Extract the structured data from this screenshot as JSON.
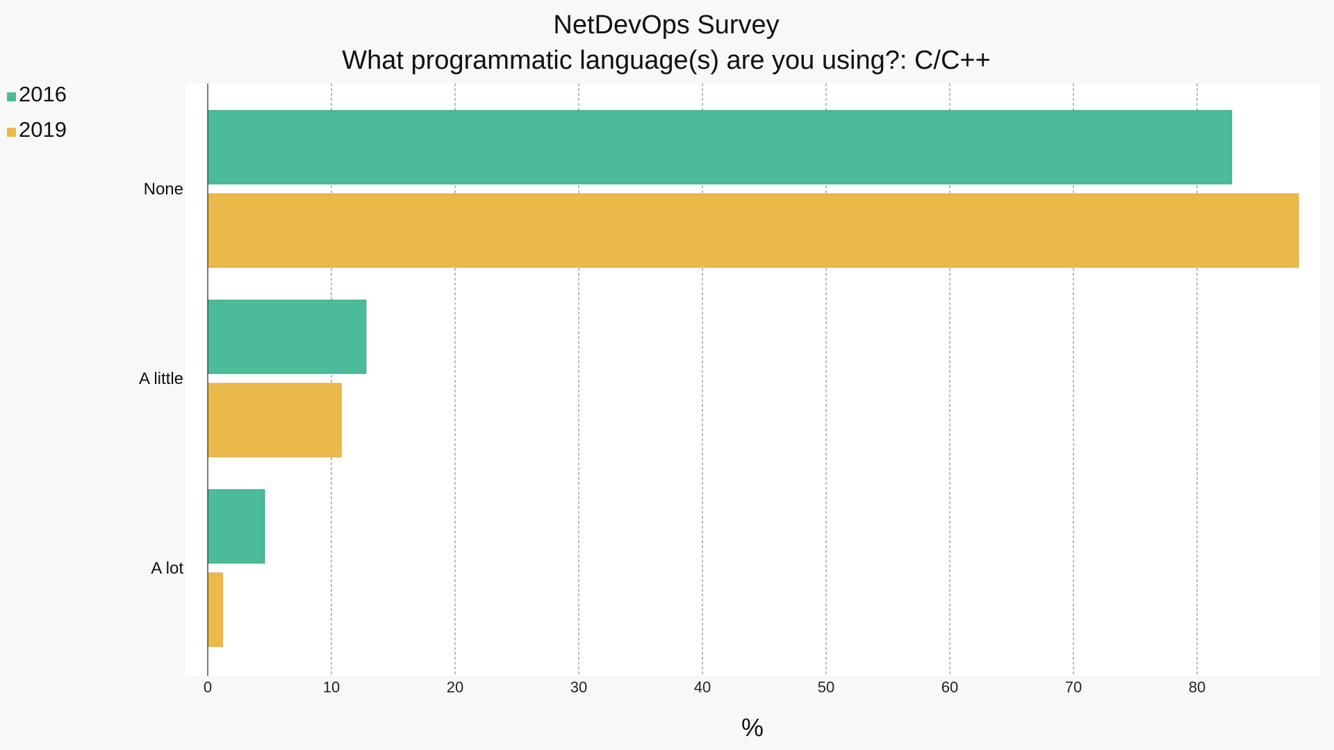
{
  "chart_data": {
    "type": "bar",
    "orientation": "horizontal",
    "title": "NetDevOps Survey",
    "subtitle": "What programmatic language(s) are you using?: C/C++",
    "xlabel": "%",
    "ylabel": "",
    "categories": [
      "None",
      "A little",
      "A lot"
    ],
    "series": [
      {
        "name": "2016",
        "color": "#4cbb9a",
        "values": [
          82.8,
          12.8,
          4.6
        ]
      },
      {
        "name": "2019",
        "color": "#ecba4a",
        "values": [
          88.2,
          10.8,
          1.2
        ]
      }
    ],
    "xlim": [
      0,
      90
    ],
    "xticks": [
      0,
      10,
      20,
      30,
      40,
      50,
      60,
      70,
      80
    ],
    "grid": true,
    "legend_position": "top-left"
  }
}
